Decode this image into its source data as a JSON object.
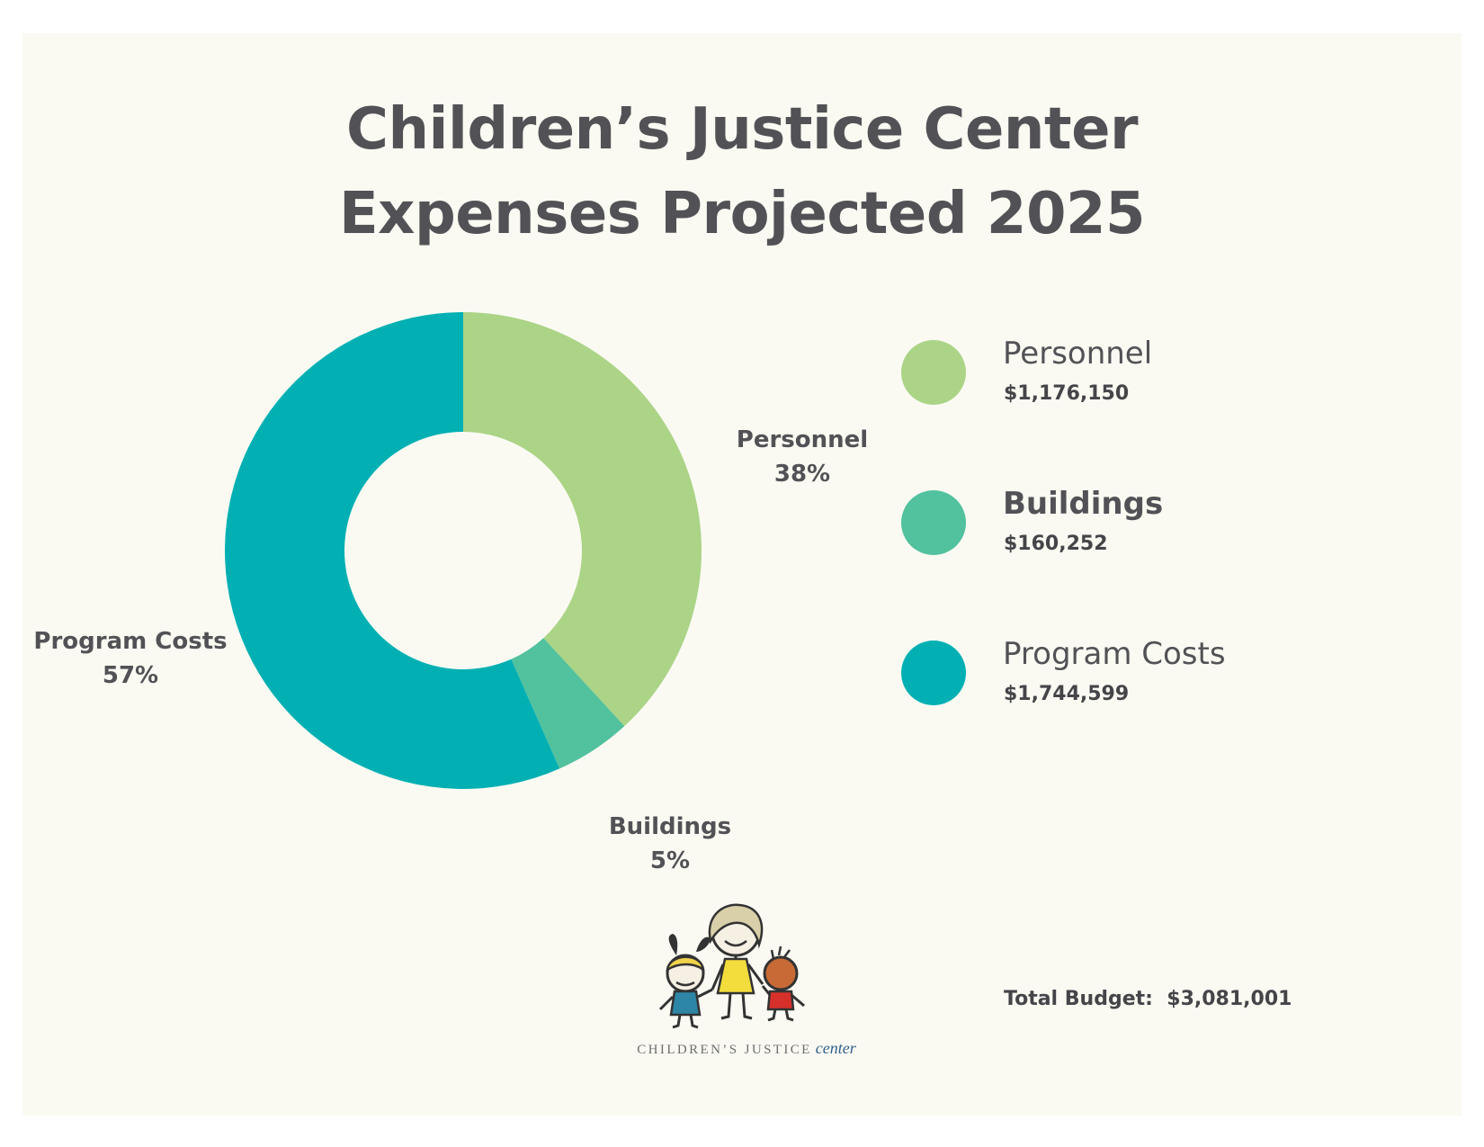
{
  "title_lines": [
    "Children’s Justice Center",
    "Expenses Projected 2025"
  ],
  "chart_data": {
    "type": "pie",
    "donut": true,
    "title": "Children’s Justice Center Expenses Projected 2025",
    "slices": [
      {
        "label": "Personnel",
        "percent_label": "38%",
        "value": 1176150,
        "value_label": "$1,176,150",
        "color": "#abd486"
      },
      {
        "label": "Buildings",
        "percent_label": "5%",
        "value": 160252,
        "value_label": "$160,252",
        "color": "#52c19d"
      },
      {
        "label": "Program Costs",
        "percent_label": "57%",
        "value": 1744599,
        "value_label": "$1,744,599",
        "color": "#02b0b3"
      }
    ],
    "legend_placement": "right",
    "total_label": "Total Budget:",
    "total_value": "$3,081,001"
  },
  "logo": {
    "text_main": "CHILDREN’S JUSTICE",
    "text_accent": "center"
  },
  "background_color": "#fafaf3",
  "text_color": "#525256"
}
